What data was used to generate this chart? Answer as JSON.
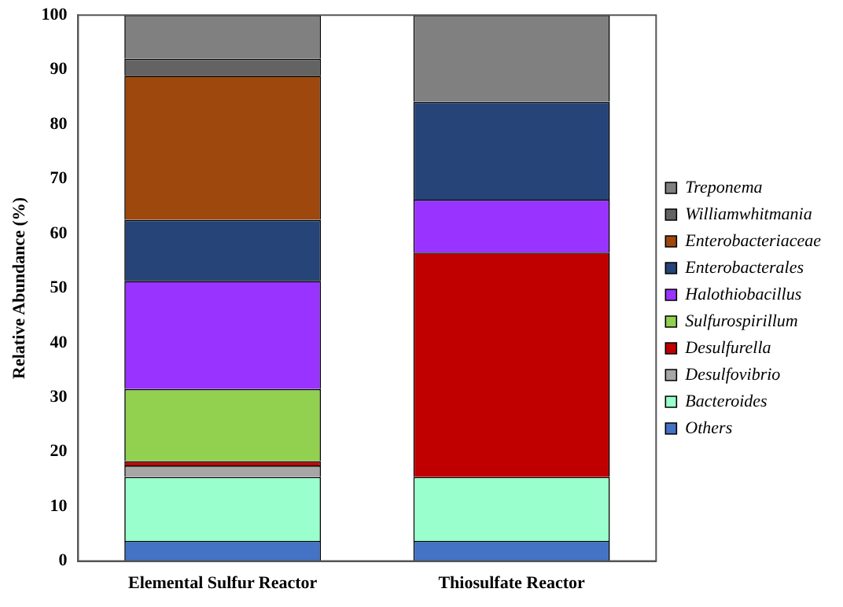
{
  "chart_data": {
    "type": "bar",
    "stacked": true,
    "ylabel": "Relative Abundance (%)",
    "categories": [
      "Elemental Sulfur Reactor",
      "Thiosulfate Reactor"
    ],
    "series": [
      {
        "name": "Others",
        "color": "#4472c4",
        "values": [
          3.7,
          3.7
        ]
      },
      {
        "name": "Bacteroides",
        "color": "#99ffcc",
        "values": [
          11.7,
          11.7
        ]
      },
      {
        "name": "Desulfovibrio",
        "color": "#a6a6a6",
        "values": [
          2.1,
          0
        ]
      },
      {
        "name": "Desulfurella",
        "color": "#c00000",
        "values": [
          0.8,
          41.1
        ]
      },
      {
        "name": "Sulfurospirillum",
        "color": "#92d050",
        "values": [
          13.2,
          0
        ]
      },
      {
        "name": "Halothiobacillus",
        "color": "#9933ff",
        "values": [
          19.8,
          9.7
        ]
      },
      {
        "name": "Enterobacterales",
        "color": "#264478",
        "values": [
          11.2,
          17.9
        ]
      },
      {
        "name": "Enterobacteriaceae",
        "color": "#9e480e",
        "values": [
          26.4,
          0
        ]
      },
      {
        "name": "Williamwhitmania",
        "color": "#636363",
        "values": [
          3.1,
          0
        ]
      },
      {
        "name": "Treponema",
        "color": "#808080",
        "values": [
          8.0,
          15.9
        ]
      }
    ],
    "ylim": [
      0,
      100
    ],
    "yticks": [
      0,
      10,
      20,
      30,
      40,
      50,
      60,
      70,
      80,
      90,
      100
    ],
    "grid": false,
    "legend": "right"
  }
}
